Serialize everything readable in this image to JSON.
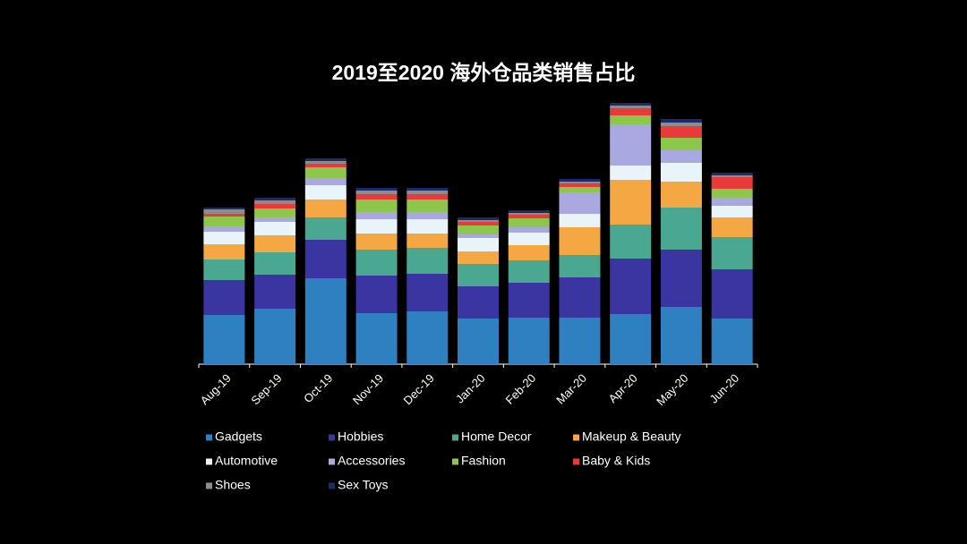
{
  "chart_data": {
    "type": "stacked-bar",
    "title": "2019至2020 海外仓品类销售占比",
    "categories": [
      "Aug-19",
      "Sep-19",
      "Oct-19",
      "Nov-19",
      "Dec-19",
      "Jan-20",
      "Feb-20",
      "Mar-20",
      "Apr-20",
      "May-20",
      "Jun-20"
    ],
    "series": [
      {
        "name": "Gadgets",
        "color": "#2f80c0",
        "values": [
          55,
          62,
          96,
          57,
          59,
          51,
          52,
          52,
          56,
          64,
          51
        ]
      },
      {
        "name": "Hobbies",
        "color": "#3a35a0",
        "values": [
          39,
          38,
          43,
          42,
          42,
          36,
          39,
          45,
          62,
          64,
          55
        ]
      },
      {
        "name": "Home Decor",
        "color": "#4aa890",
        "values": [
          23,
          25,
          25,
          29,
          29,
          25,
          25,
          25,
          38,
          47,
          36
        ]
      },
      {
        "name": "Makeup & Beauty",
        "color": "#f4a742",
        "values": [
          17,
          19,
          20,
          18,
          16,
          14,
          17,
          31,
          50,
          29,
          22
        ]
      },
      {
        "name": "Automotive",
        "color": "#e8f4f8",
        "values": [
          14,
          15,
          16,
          16,
          16,
          15,
          14,
          15,
          16,
          21,
          13
        ]
      },
      {
        "name": "Accessories",
        "color": "#a9a8e0",
        "values": [
          6,
          5,
          8,
          8,
          8,
          4,
          6,
          24,
          46,
          14,
          9
        ]
      },
      {
        "name": "Fashion",
        "color": "#8dc64a",
        "values": [
          11,
          10,
          12,
          14,
          14,
          10,
          10,
          6,
          10,
          14,
          10
        ]
      },
      {
        "name": "Baby & Kids",
        "color": "#e83a3a",
        "values": [
          3,
          5,
          4,
          6,
          6,
          4,
          4,
          4,
          8,
          13,
          13
        ]
      },
      {
        "name": "Shoes",
        "color": "#8c8c8c",
        "values": [
          5,
          4,
          3,
          4,
          4,
          2,
          2,
          2,
          3,
          4,
          2
        ]
      },
      {
        "name": "Sex Toys",
        "color": "#1e2a6a",
        "values": [
          2,
          3,
          3,
          3,
          3,
          3,
          3,
          3,
          3,
          4,
          3
        ]
      }
    ]
  }
}
